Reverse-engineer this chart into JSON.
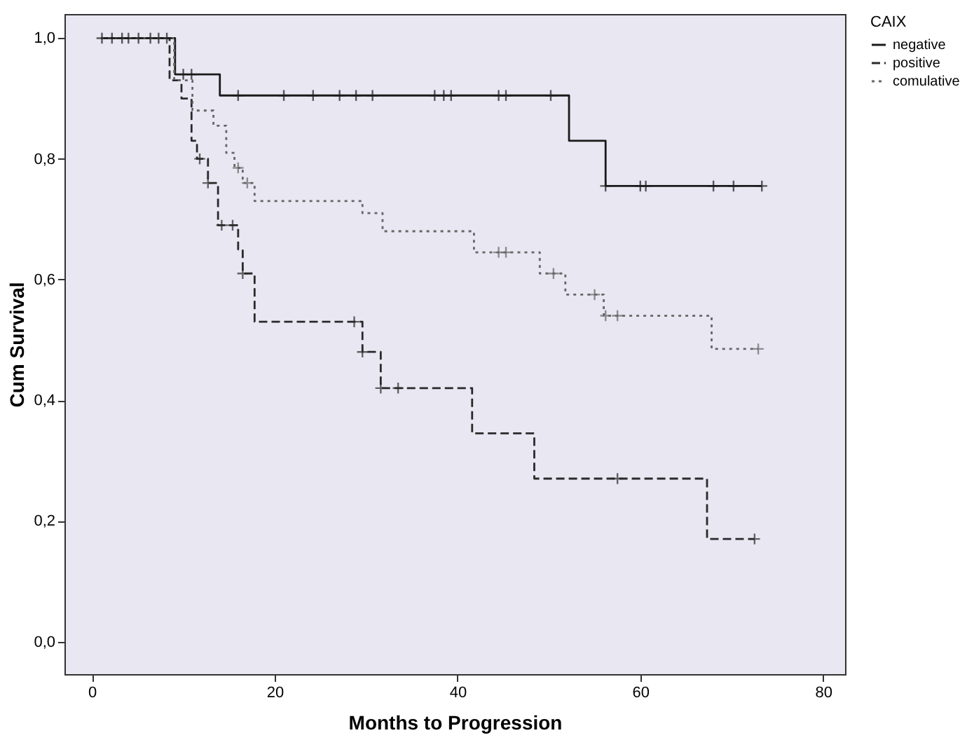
{
  "chart_data": {
    "type": "step",
    "xlabel": "Months to Progression",
    "ylabel": "Cum Survival",
    "legend_title": "CAIX",
    "legend": "right",
    "grid": false,
    "xlim": [
      -3,
      82.4
    ],
    "xticks": [
      0,
      20,
      40,
      60,
      80
    ],
    "ylim": [
      -0.054,
      1.04
    ],
    "yticks": [
      {
        "value": 0,
        "label": "0,0"
      },
      {
        "value": 0.2,
        "label": "0,2"
      },
      {
        "value": 0.4,
        "label": "0,4"
      },
      {
        "value": 0.6,
        "label": "0,6"
      },
      {
        "value": 0.8,
        "label": "0,8"
      },
      {
        "value": 1,
        "label": "1,0"
      }
    ],
    "series": [
      {
        "name": "negative",
        "line_style": "solid",
        "color": "#1a1a1a",
        "x": [
          1,
          9.1,
          14,
          52.2,
          56.2,
          73.3
        ],
        "values": [
          1,
          0.94,
          0.905,
          0.83,
          0.755,
          0.755
        ]
      },
      {
        "name": "positive",
        "line_style": "dashed",
        "color": "#2a2a2a",
        "x": [
          1,
          8.5,
          9.8,
          10.9,
          11.5,
          12.7,
          13.8,
          16,
          16.5,
          17.8,
          29.6,
          31.6,
          41.6,
          48.4,
          67.3,
          72.5
        ],
        "values": [
          1,
          0.93,
          0.9,
          0.83,
          0.8,
          0.76,
          0.69,
          0.65,
          0.61,
          0.53,
          0.48,
          0.42,
          0.345,
          0.27,
          0.17,
          0.17
        ]
      },
      {
        "name": "comulative",
        "line_style": "dotted",
        "color": "#666666",
        "x": [
          1,
          9,
          11,
          13.3,
          14.7,
          15.6,
          16.5,
          17.8,
          29.6,
          31.8,
          41.8,
          49,
          51.8,
          56,
          67.8,
          72.9
        ],
        "values": [
          1,
          0.93,
          0.88,
          0.855,
          0.81,
          0.785,
          0.76,
          0.73,
          0.71,
          0.68,
          0.645,
          0.61,
          0.575,
          0.54,
          0.485,
          0.485
        ]
      },
      {
        "type": "scatter",
        "marker": "cross",
        "color": "#1a1a1a",
        "x": [
          1.1,
          2.2,
          3.3,
          4,
          5.1,
          6.4,
          7.3,
          8.2,
          10,
          10.9,
          16,
          21,
          24.2,
          27.1,
          28.9,
          30.7,
          37.5,
          38.5,
          39.3,
          44.5,
          45.3,
          50.2,
          56.2,
          60,
          60.6,
          68,
          70.2,
          73.3
        ],
        "values": [
          1,
          1,
          1,
          1,
          1,
          1,
          1,
          1,
          0.94,
          0.94,
          0.905,
          0.905,
          0.905,
          0.905,
          0.905,
          0.905,
          0.905,
          0.905,
          0.905,
          0.905,
          0.905,
          0.905,
          0.755,
          0.755,
          0.755,
          0.755,
          0.755,
          0.755
        ]
      },
      {
        "type": "scatter",
        "marker": "cross",
        "color": "#2a2a2a",
        "x": [
          11.8,
          12.7,
          14.2,
          15.4,
          16.5,
          28.7,
          29.6,
          31.6,
          33.5,
          57.5,
          72.5
        ],
        "values": [
          0.8,
          0.76,
          0.69,
          0.69,
          0.61,
          0.53,
          0.48,
          0.42,
          0.42,
          0.27,
          0.17
        ]
      },
      {
        "type": "scatter",
        "marker": "cross",
        "color": "#666666",
        "x": [
          16,
          17,
          44.5,
          45.3,
          50.5,
          55,
          56.2,
          57.5,
          72.9
        ],
        "values": [
          0.785,
          0.76,
          0.645,
          0.645,
          0.61,
          0.575,
          0.54,
          0.54,
          0.485
        ]
      }
    ]
  }
}
